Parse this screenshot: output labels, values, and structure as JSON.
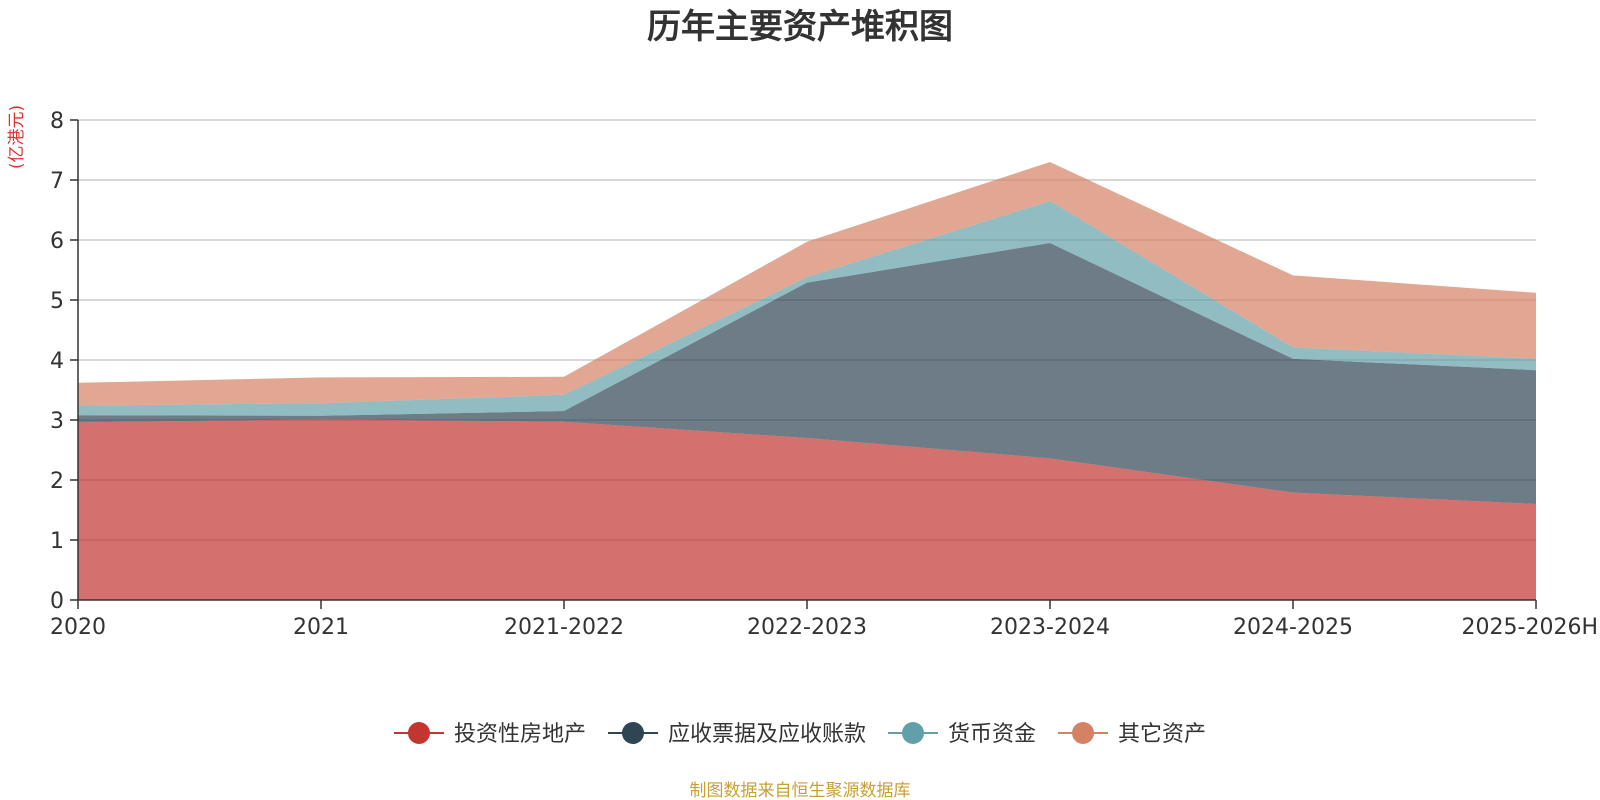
{
  "chart_data": {
    "type": "area",
    "stacked": true,
    "title": "历年主要资产堆积图",
    "ylabel": "(亿港元)",
    "ylim": [
      0,
      8
    ],
    "yticks": [
      0,
      1,
      2,
      3,
      4,
      5,
      6,
      7,
      8
    ],
    "grid": true,
    "legend_position": "bottom",
    "categories": [
      "2020",
      "2021",
      "2021-2022",
      "2022-2023",
      "2023-2024",
      "2024-2025",
      "2025-2026H"
    ],
    "series": [
      {
        "name": "投资性房地产",
        "color": "#c23531",
        "values": [
          2.96,
          3.01,
          2.97,
          2.7,
          2.36,
          1.79,
          1.6
        ]
      },
      {
        "name": "应收票据及应收账款",
        "color": "#2f4554",
        "values": [
          0.12,
          0.06,
          0.18,
          2.59,
          3.59,
          2.23,
          2.23
        ]
      },
      {
        "name": "货币资金",
        "color": "#61a0a8",
        "values": [
          0.16,
          0.21,
          0.27,
          0.09,
          0.7,
          0.19,
          0.19
        ]
      },
      {
        "name": "其它资产",
        "color": "#d48265",
        "values": [
          0.38,
          0.43,
          0.3,
          0.59,
          0.65,
          1.2,
          1.1
        ]
      }
    ],
    "source": "制图数据来自恒生聚源数据库",
    "colors": {
      "title": "#333333",
      "unit": "#e03030",
      "source": "#c8a032",
      "axis": "#333333",
      "grid": "#cccccc"
    }
  }
}
